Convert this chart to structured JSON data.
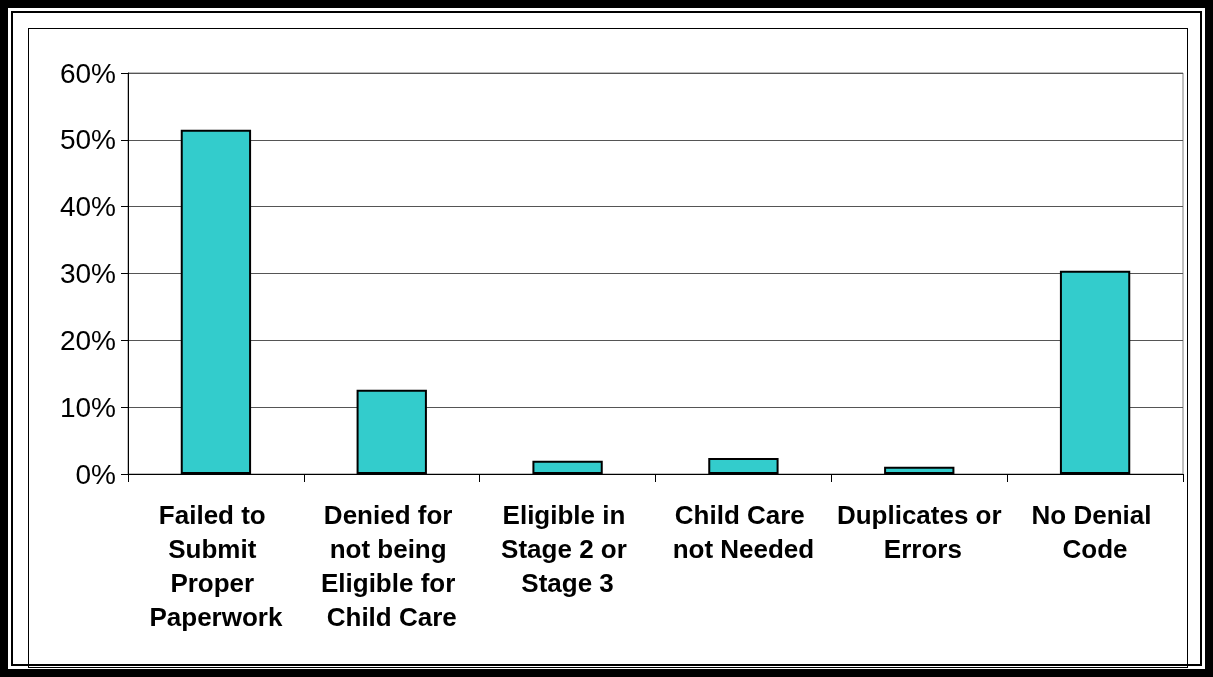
{
  "chart_data": {
    "type": "bar",
    "categories": [
      "Failed to Submit Proper Paperwork",
      "Denied for not being Eligible for Child Care",
      "Eligible in Stage 2 or Stage 3",
      "Child Care not Needed",
      "Duplicates or Errors",
      "No Denial Code"
    ],
    "values": [
      51.5,
      12.6,
      2.0,
      2.4,
      1.1,
      30.4
    ],
    "color": "#33cccc",
    "ylim": [
      0,
      60
    ],
    "yticks": [
      {
        "value": 0,
        "label": "0%"
      },
      {
        "value": 10,
        "label": "10%"
      },
      {
        "value": 20,
        "label": "20%"
      },
      {
        "value": 30,
        "label": "30%"
      },
      {
        "value": 40,
        "label": "40%"
      },
      {
        "value": 50,
        "label": "50%"
      },
      {
        "value": 60,
        "label": "60%"
      }
    ],
    "grid": "y"
  }
}
